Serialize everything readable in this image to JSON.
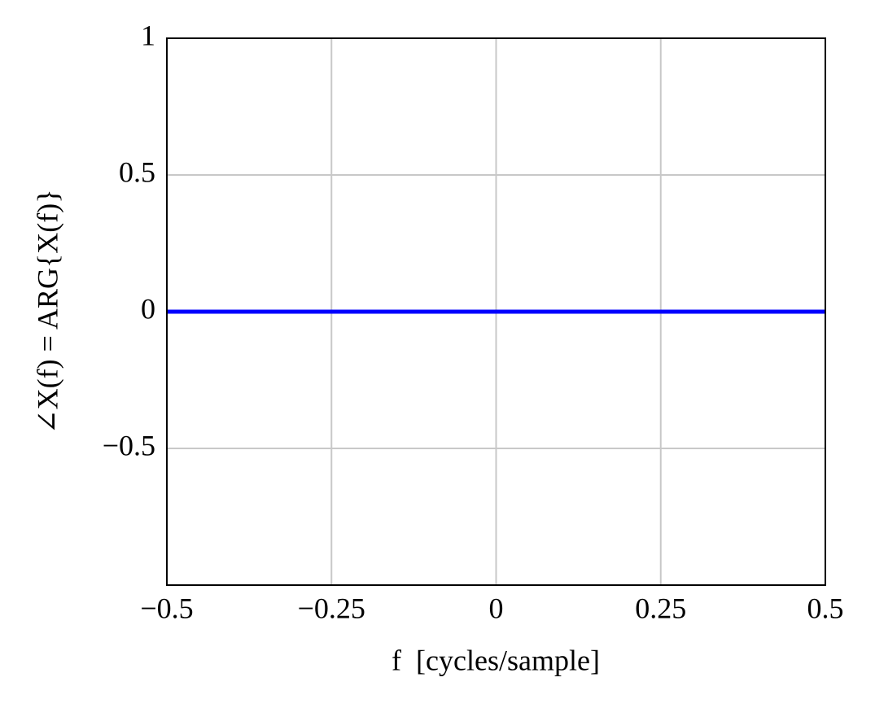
{
  "chart_data": {
    "type": "line",
    "x_label": "f  [cycles/sample]",
    "y_label": "∠X(f) = ARG{X(f)}",
    "x": [
      -0.5,
      0.5
    ],
    "series": [
      {
        "color": "#0000ff",
        "values": [
          0,
          0
        ]
      }
    ],
    "xlim": [
      -0.5,
      0.5
    ],
    "xticks": [
      {
        "value": -0.5,
        "label": "−0.5"
      },
      {
        "value": -0.25,
        "label": "−0.25"
      },
      0,
      0.25,
      0.5
    ],
    "ylim": [
      -1,
      1
    ],
    "yticks": [
      {
        "value": -0.5,
        "label": "−0.5"
      },
      0,
      0.5,
      1
    ],
    "grid": true
  }
}
